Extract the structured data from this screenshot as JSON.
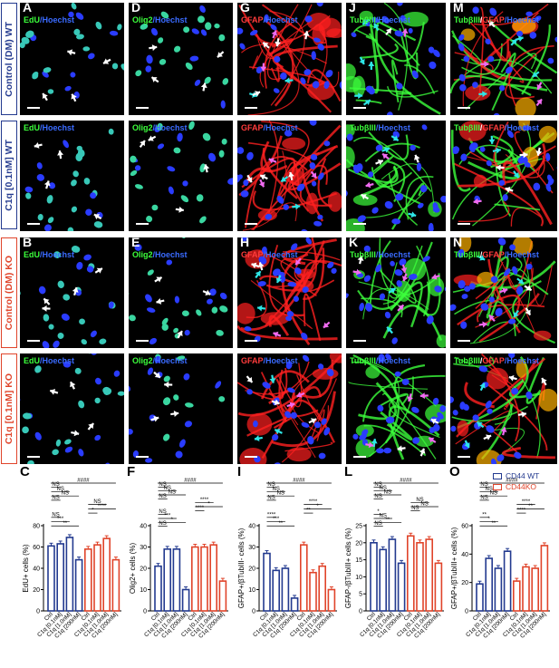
{
  "panel_labels": {
    "A": "A",
    "B": "B",
    "D": "D",
    "E": "E",
    "G": "G",
    "H": "H",
    "J": "J",
    "K": "K",
    "M": "M",
    "N": "N"
  },
  "stain_titles": {
    "edu": [
      "EdU",
      "/Hoechst"
    ],
    "olig2": [
      "Olig2",
      "/Hoechst"
    ],
    "gfap": [
      "GFAP",
      "/Hoechst"
    ],
    "tub": [
      "TubβIII",
      "/Hoechst"
    ],
    "tubgfap": [
      "TubβIII",
      "/",
      "GFAP",
      "/Hoechst"
    ]
  },
  "row_labels": [
    "Control (DM) WT",
    "C1q [0.1nM] WT",
    "Control (DM) KO",
    "C1q [0.1nM] KO"
  ],
  "legend": {
    "wt": "CD44 WT",
    "ko": "CD44KO",
    "wt_color": "#233a8f",
    "ko_color": "#e0442a"
  },
  "colors": {
    "wt": "#233a8f",
    "ko": "#e0442a",
    "hoechst": "#2a3cff",
    "green": "#3cff3c",
    "red": "#ff2020",
    "arrow_white": "#ffffff",
    "arrow_cyan": "#2ee6e6",
    "arrow_magenta": "#f06bf0"
  },
  "categories": [
    "Ctrl",
    "C1q [0.1nM]",
    "C1q [1.0nM]",
    "C1q [200nM]",
    "Ctrl",
    "C1q [0.1nM]",
    "C1q [1.0nM]",
    "C1q [200nM]"
  ],
  "chart_data": [
    {
      "label": "C",
      "type": "bar",
      "ylabel": "EdU+ cells (%)",
      "ylim": [
        0,
        80
      ],
      "yticks": [
        0,
        20,
        40,
        60,
        80
      ],
      "series": [
        {
          "name": "CD44 WT",
          "values": [
            61,
            63,
            69,
            48
          ]
        },
        {
          "name": "CD44KO",
          "values": [
            58,
            62,
            68,
            48
          ]
        }
      ],
      "annotations": [
        "####",
        "NS",
        "NS",
        "NS",
        "NS",
        "NS",
        "****",
        "*",
        "NS",
        "***",
        "**"
      ]
    },
    {
      "label": "F",
      "type": "bar",
      "ylabel": "Olig2+ cells (%)",
      "ylim": [
        0,
        40
      ],
      "yticks": [
        0,
        10,
        20,
        30,
        40
      ],
      "series": [
        {
          "name": "CD44 WT",
          "values": [
            21,
            29,
            29,
            10
          ]
        },
        {
          "name": "CD44KO",
          "values": [
            30,
            30,
            31,
            14
          ]
        }
      ],
      "annotations": [
        "####",
        "NS",
        "NS",
        "NS",
        "NS",
        "****",
        "*",
        "****",
        "NS",
        "***",
        "*",
        "NS"
      ]
    },
    {
      "label": "I",
      "type": "bar",
      "ylabel": "GFAP+/βTubIII- cells (%)",
      "ylim": [
        0,
        40
      ],
      "yticks": [
        0,
        10,
        20,
        30,
        40
      ],
      "series": [
        {
          "name": "CD44 WT",
          "values": [
            27,
            19,
            20,
            6
          ]
        },
        {
          "name": "CD44KO",
          "values": [
            31,
            18,
            21,
            10
          ]
        }
      ],
      "annotations": [
        "####",
        "NS",
        "NS",
        "NS",
        "NS",
        "****",
        "*",
        "**",
        "****",
        "***",
        "**"
      ]
    },
    {
      "label": "L",
      "type": "bar",
      "ylabel": "GFAP-/βTubIII+ cells (%)",
      "ylim": [
        0,
        25
      ],
      "yticks": [
        0,
        5,
        10,
        15,
        20,
        25
      ],
      "series": [
        {
          "name": "CD44 WT",
          "values": [
            20,
            18,
            21,
            14
          ]
        },
        {
          "name": "CD44KO",
          "values": [
            22,
            20,
            21,
            14
          ]
        }
      ],
      "annotations": [
        "####",
        "NS",
        "NS",
        "NS",
        "NS",
        "NS",
        "NS",
        "NS",
        "*",
        "NS",
        "**",
        "NS"
      ]
    },
    {
      "label": "O",
      "type": "bar",
      "ylabel": "GFAP+/βTubIII+ cells (%)",
      "ylim": [
        0,
        60
      ],
      "yticks": [
        0,
        20,
        40,
        60
      ],
      "series": [
        {
          "name": "CD44 WT",
          "values": [
            19,
            37,
            30,
            42
          ]
        },
        {
          "name": "CD44KO",
          "values": [
            21,
            31,
            30,
            46
          ]
        }
      ],
      "annotations": [
        "####",
        "NS",
        "NS",
        "NS",
        "NS",
        "****",
        "**",
        "****",
        "**",
        "*",
        "**"
      ]
    }
  ]
}
